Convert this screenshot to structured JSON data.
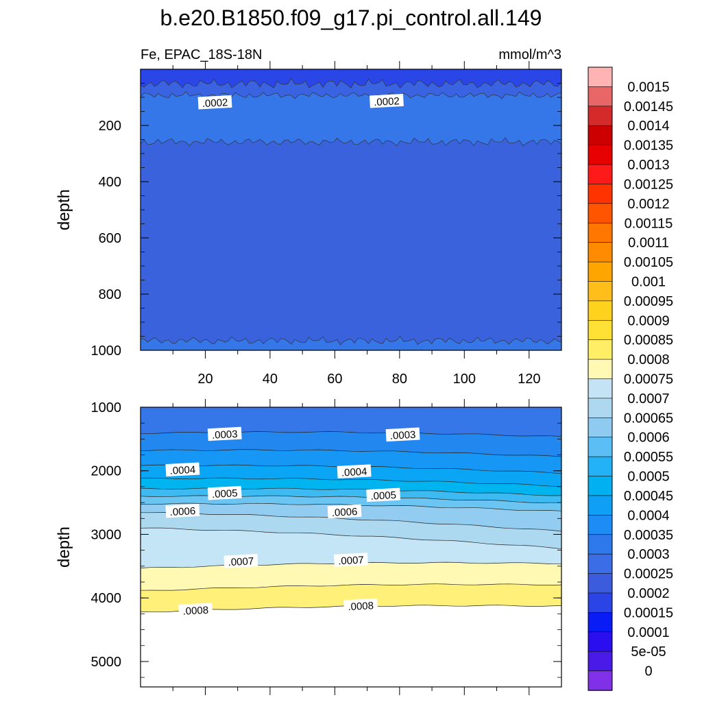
{
  "title": "b.e20.B1850.f09_g17.pi_control.all.149",
  "subtitle_left": "Fe, EPAC_18S-18N",
  "subtitle_right": "mmol/m^3",
  "chart_data": [
    {
      "type": "contour",
      "name": "upper",
      "ylabel": "depth",
      "ylim": [
        1000,
        0
      ],
      "xlim": [
        0,
        130
      ],
      "xticks": [
        20,
        40,
        60,
        80,
        100,
        120
      ],
      "yticks": [
        200,
        400,
        600,
        800,
        1000
      ],
      "contour_labels": [
        {
          "text": ".0002",
          "x": 23,
          "y": 120
        },
        {
          "text": ".0002",
          "x": 76,
          "y": 115
        }
      ]
    },
    {
      "type": "contour",
      "name": "lower",
      "ylabel": "depth",
      "ylim": [
        5400,
        1000
      ],
      "xlim": [
        0,
        130
      ],
      "yticks": [
        1000,
        2000,
        3000,
        4000,
        5000
      ],
      "contour_labels": [
        {
          "text": ".0003",
          "x": 26,
          "y": 1430
        },
        {
          "text": ".0003",
          "x": 81,
          "y": 1440
        },
        {
          "text": ".0004",
          "x": 13,
          "y": 1990
        },
        {
          "text": ".0004",
          "x": 66,
          "y": 2020
        },
        {
          "text": ".0005",
          "x": 26,
          "y": 2360
        },
        {
          "text": ".0005",
          "x": 75,
          "y": 2390
        },
        {
          "text": ".0006",
          "x": 13,
          "y": 2640
        },
        {
          "text": ".0006",
          "x": 63,
          "y": 2650
        },
        {
          "text": ".0007",
          "x": 31,
          "y": 3430
        },
        {
          "text": ".0007",
          "x": 65,
          "y": 3410
        },
        {
          "text": ".0008",
          "x": 17,
          "y": 4200
        },
        {
          "text": ".0008",
          "x": 68,
          "y": 4130
        }
      ]
    }
  ],
  "colorbar": {
    "labels": [
      "0.0015",
      "0.00145",
      "0.0014",
      "0.00135",
      "0.0013",
      "0.00125",
      "0.0012",
      "0.00115",
      "0.0011",
      "0.00105",
      "0.001",
      "0.00095",
      "0.0009",
      "0.00085",
      "0.0008",
      "0.00075",
      "0.0007",
      "0.00065",
      "0.0006",
      "0.00055",
      "0.0005",
      "0.00045",
      "0.0004",
      "0.00035",
      "0.0003",
      "0.00025",
      "0.0002",
      "0.00015",
      "0.0001",
      "5e-05",
      "0"
    ],
    "colors": [
      "#ffb3b3",
      "#e86666",
      "#d42a2a",
      "#cc0000",
      "#e60000",
      "#ff1a1a",
      "#ff3300",
      "#ff5500",
      "#ff7700",
      "#ff8c00",
      "#ffa500",
      "#ffbe1a",
      "#ffd21e",
      "#ffe135",
      "#ffee66",
      "#fff9b3",
      "#c4e4f5",
      "#add8f0",
      "#8fcaf0",
      "#5bbff5",
      "#22b2f5",
      "#00b0f0",
      "#0fa0f5",
      "#1e8cf5",
      "#2d79ec",
      "#3a6de6",
      "#3b5ddd",
      "#2a44e6",
      "#0a1cf5",
      "#2a0ef0",
      "#4a1ae8",
      "#8030e6"
    ]
  }
}
